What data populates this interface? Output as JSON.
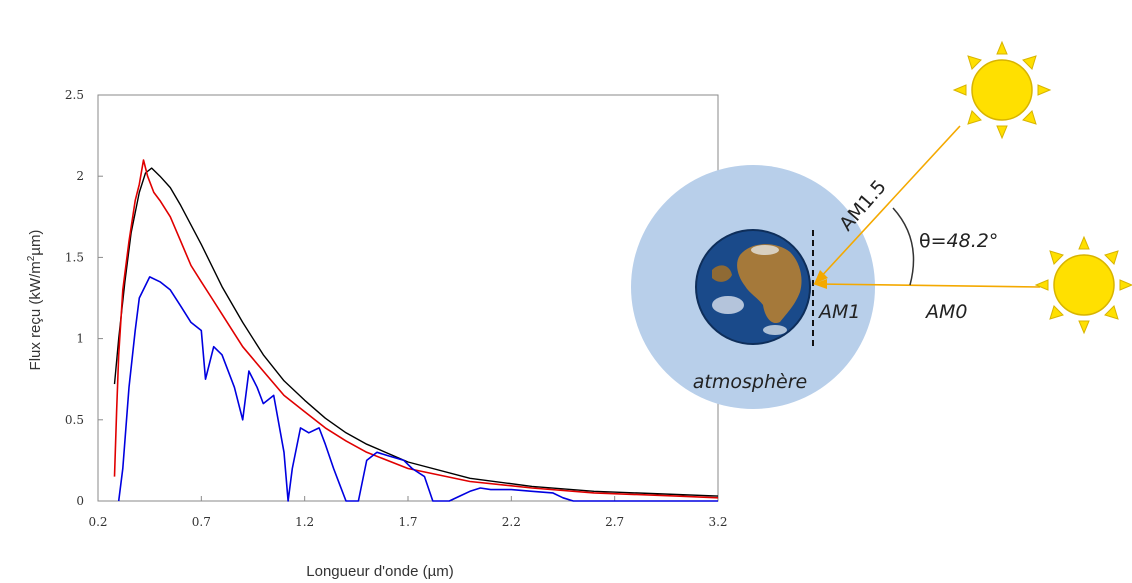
{
  "chart_data": {
    "type": "line",
    "title": "",
    "xlabel": "Longueur d'onde (µm)",
    "ylabel_prefix": "Flux reçu (kW/m",
    "ylabel_sup": "2",
    "ylabel_suffix": "µm)",
    "xlim": [
      0.2,
      3.2
    ],
    "ylim": [
      0,
      2.5
    ],
    "x_ticks": [
      "0.2",
      "0.7",
      "1.2",
      "1.7",
      "2.2",
      "2.7",
      "3.2"
    ],
    "y_ticks": [
      "0",
      "0.5",
      "1",
      "1.5",
      "2",
      "2.5"
    ],
    "grid": false,
    "series": [
      {
        "color": "#000000",
        "x": [
          0.28,
          0.3,
          0.33,
          0.36,
          0.4,
          0.43,
          0.46,
          0.5,
          0.55,
          0.6,
          0.7,
          0.8,
          0.9,
          1.0,
          1.1,
          1.2,
          1.3,
          1.4,
          1.5,
          1.7,
          2.0,
          2.3,
          2.6,
          3.0,
          3.2
        ],
        "y": [
          0.72,
          1.0,
          1.35,
          1.65,
          1.9,
          2.02,
          2.05,
          2.0,
          1.93,
          1.82,
          1.58,
          1.32,
          1.1,
          0.9,
          0.74,
          0.62,
          0.51,
          0.42,
          0.35,
          0.24,
          0.14,
          0.09,
          0.06,
          0.04,
          0.03
        ]
      },
      {
        "color": "#e00000",
        "x": [
          0.28,
          0.29,
          0.3,
          0.32,
          0.35,
          0.38,
          0.4,
          0.42,
          0.44,
          0.47,
          0.5,
          0.55,
          0.6,
          0.65,
          0.7,
          0.75,
          0.8,
          0.9,
          1.0,
          1.1,
          1.2,
          1.3,
          1.4,
          1.5,
          1.7,
          2.0,
          2.3,
          2.6,
          3.0,
          3.2
        ],
        "y": [
          0.15,
          0.55,
          0.9,
          1.3,
          1.6,
          1.85,
          1.95,
          2.1,
          2.0,
          1.9,
          1.85,
          1.75,
          1.6,
          1.45,
          1.35,
          1.25,
          1.15,
          0.95,
          0.8,
          0.65,
          0.55,
          0.45,
          0.37,
          0.3,
          0.2,
          0.12,
          0.08,
          0.05,
          0.03,
          0.02
        ]
      },
      {
        "color": "#0000e0",
        "x": [
          0.3,
          0.32,
          0.35,
          0.38,
          0.4,
          0.45,
          0.5,
          0.55,
          0.6,
          0.65,
          0.7,
          0.72,
          0.76,
          0.8,
          0.86,
          0.9,
          0.93,
          0.97,
          1.0,
          1.05,
          1.1,
          1.12,
          1.14,
          1.18,
          1.22,
          1.27,
          1.3,
          1.34,
          1.37,
          1.4,
          1.46,
          1.5,
          1.55,
          1.6,
          1.68,
          1.72,
          1.78,
          1.82,
          1.9,
          1.95,
          2.0,
          2.05,
          2.1,
          2.2,
          2.3,
          2.4,
          2.45,
          2.5,
          2.6,
          3.2
        ],
        "y": [
          0.0,
          0.2,
          0.7,
          1.05,
          1.25,
          1.38,
          1.35,
          1.3,
          1.2,
          1.1,
          1.05,
          0.75,
          0.95,
          0.9,
          0.7,
          0.5,
          0.8,
          0.7,
          0.6,
          0.65,
          0.3,
          0.0,
          0.2,
          0.45,
          0.42,
          0.45,
          0.35,
          0.2,
          0.1,
          0.0,
          0.0,
          0.25,
          0.3,
          0.28,
          0.25,
          0.2,
          0.15,
          0.0,
          0.0,
          0.03,
          0.06,
          0.08,
          0.07,
          0.07,
          0.06,
          0.05,
          0.02,
          0.0,
          0.0,
          0.0
        ]
      }
    ]
  },
  "diagram": {
    "atmosphere_label": "atmosphère",
    "am1_label": "AM1",
    "am0_label": "AM0",
    "am15_label": "AM1.5",
    "theta_label_symbol": "θ",
    "theta_label_value": "=48.2°",
    "sun_color": "#ffe000",
    "sun_stroke": "#d8b400",
    "ray_color": "#f4a900",
    "atmosphere_color": "#b8cfea",
    "earth_ocean_color": "#1a4a8a",
    "earth_land_color": "#a5793a"
  }
}
